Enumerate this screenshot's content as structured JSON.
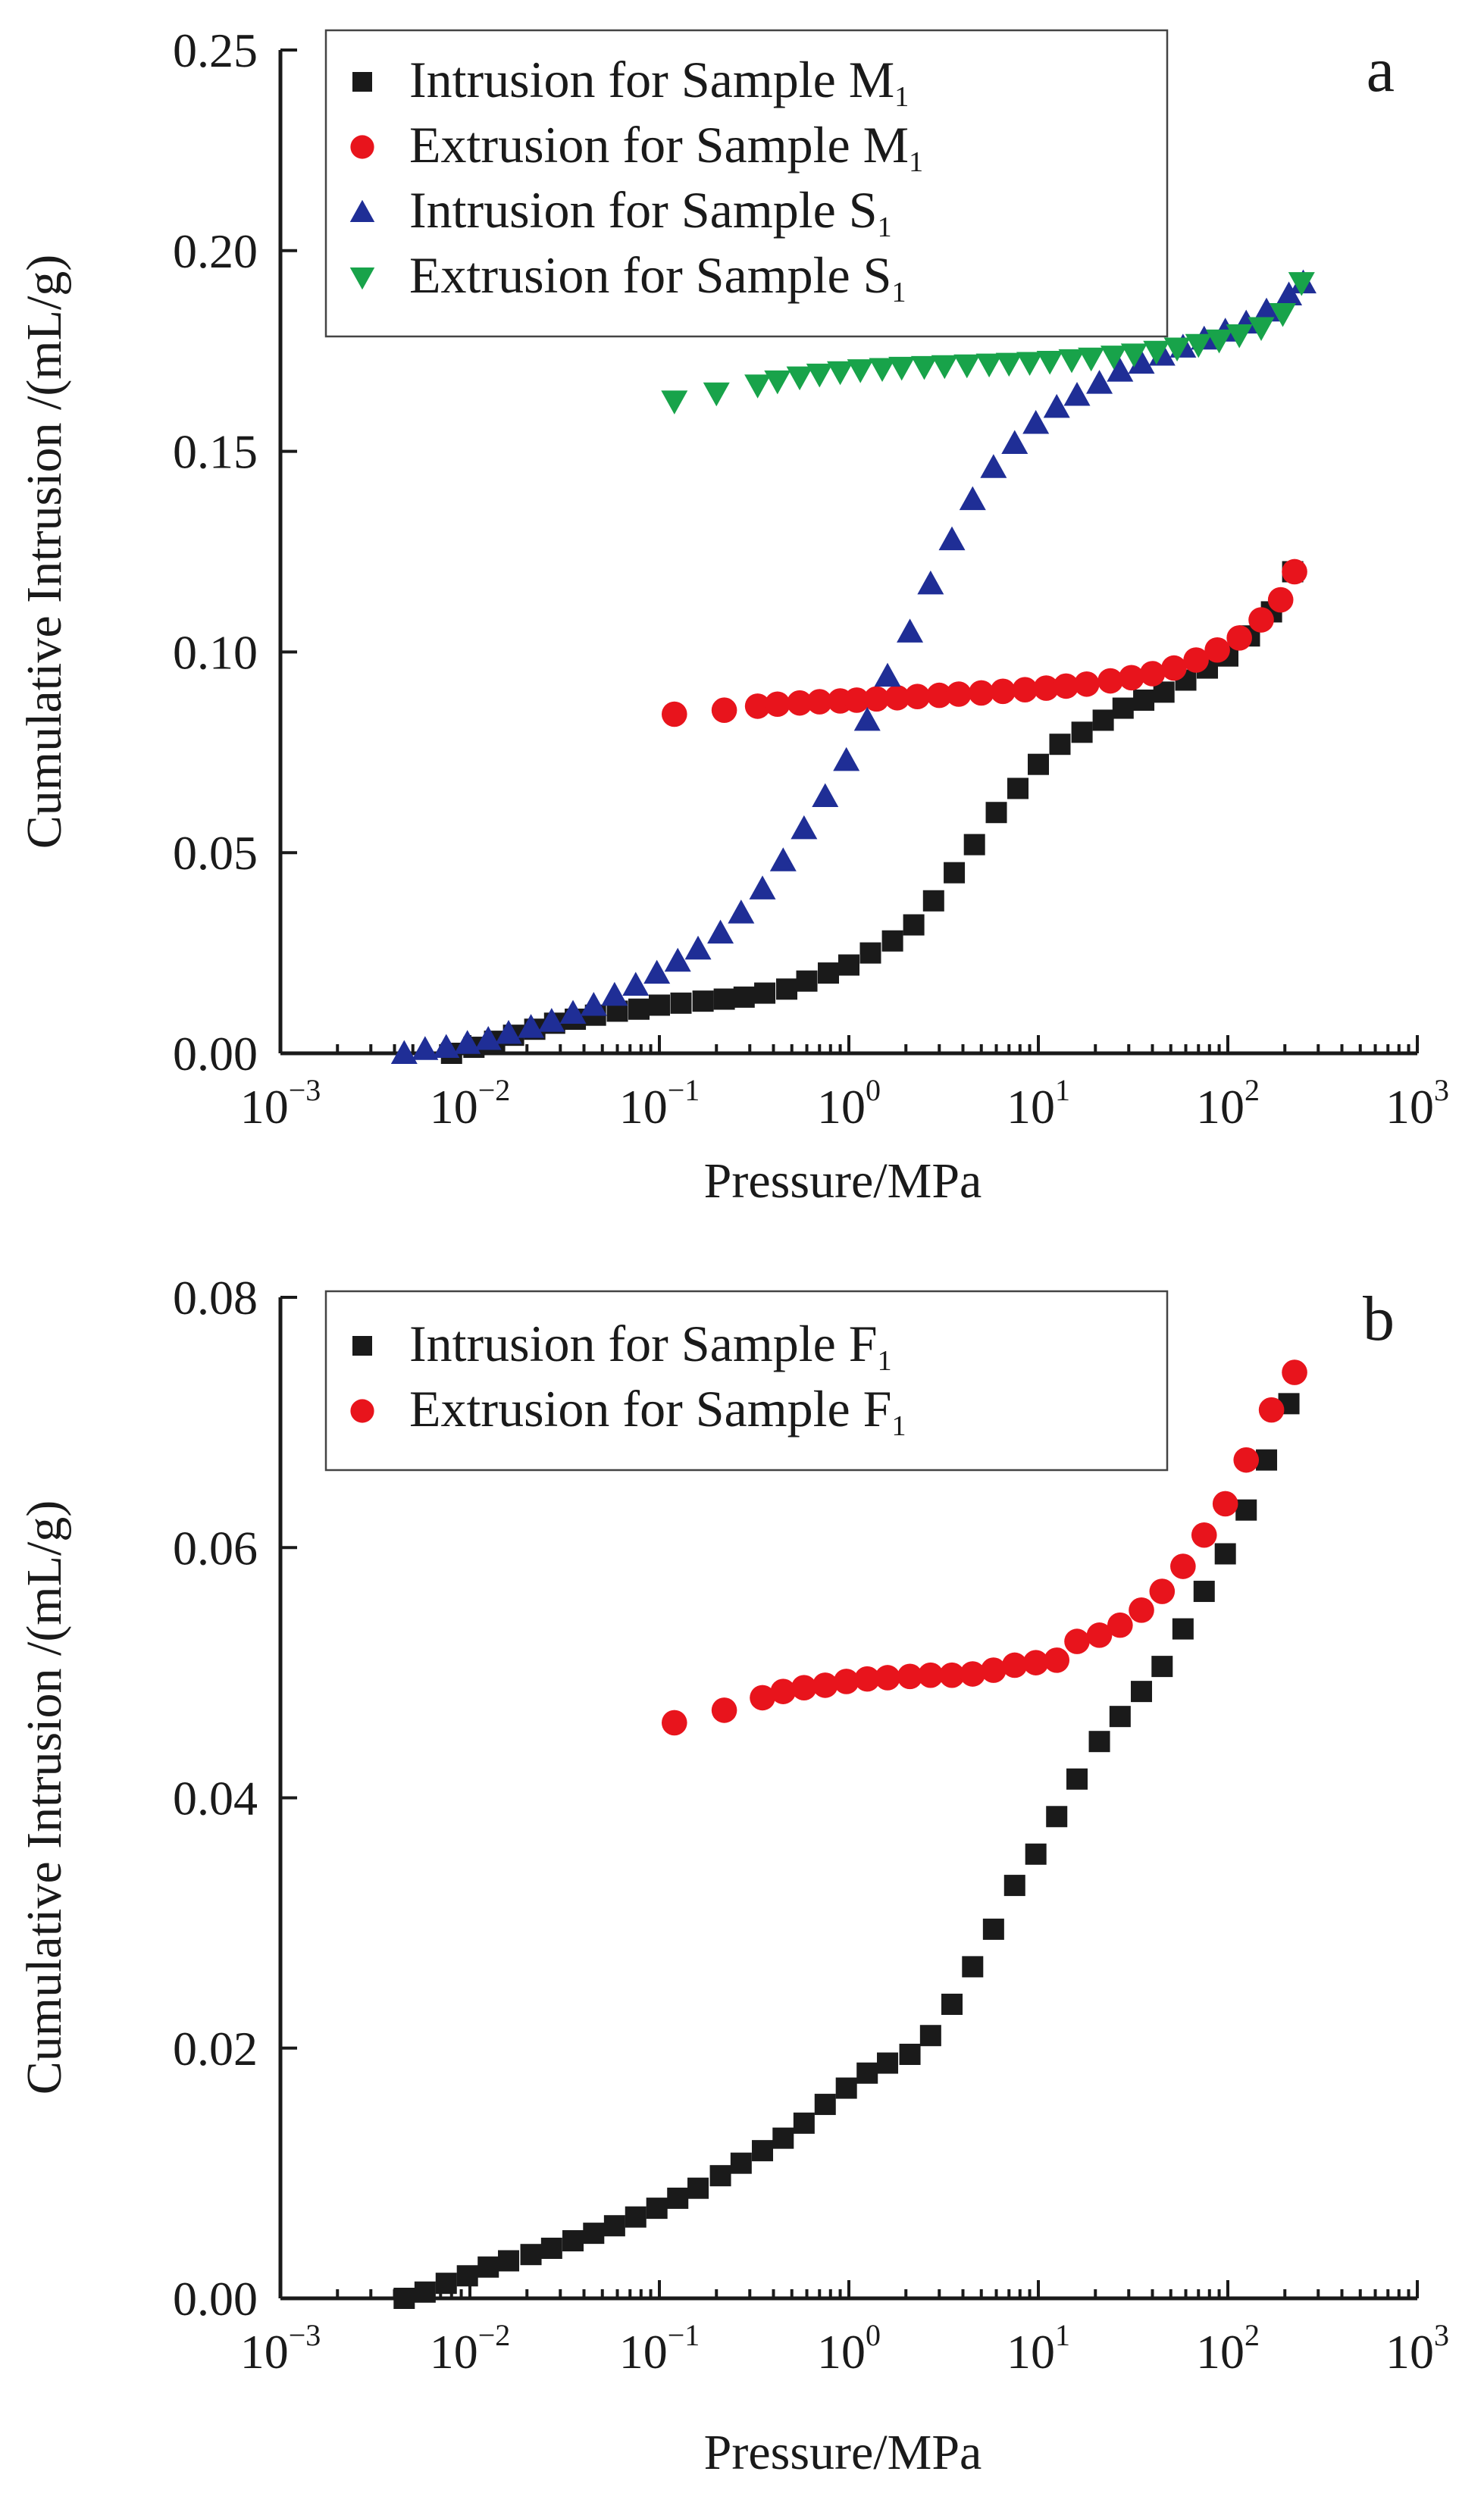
{
  "chart_data": [
    {
      "type": "scatter",
      "panel_label": "a",
      "xscale": "log",
      "xlim": [
        0.001,
        1000
      ],
      "ylim": [
        0,
        0.25
      ],
      "xlabel": "Pressure/MPa",
      "ylabel": "Cumulative Intrusion /(mL/g)",
      "x_ticks": [
        0.001,
        0.01,
        0.1,
        1,
        10,
        100,
        1000
      ],
      "x_tick_base": [
        "10",
        "10",
        "10",
        "10",
        "10",
        "10",
        "10"
      ],
      "x_tick_exp": [
        "−3",
        "−2",
        "−1",
        "0",
        "1",
        "2",
        "3"
      ],
      "y_ticks": [
        0,
        0.05,
        0.1,
        0.15,
        0.2,
        0.25
      ],
      "y_tick_labels": [
        "0.00",
        "0.05",
        "0.10",
        "0.15",
        "0.20",
        "0.25"
      ],
      "legend_position": "top-left",
      "series": [
        {
          "name": "Intrusion for Sample M",
          "subscript": "1",
          "marker": "square",
          "color": "#1a1a1a",
          "x": [
            0.008,
            0.0105,
            0.0135,
            0.017,
            0.022,
            0.028,
            0.036,
            0.046,
            0.06,
            0.078,
            0.1,
            0.13,
            0.17,
            0.22,
            0.28,
            0.36,
            0.47,
            0.6,
            0.78,
            1.0,
            1.3,
            1.7,
            2.2,
            2.8,
            3.6,
            4.6,
            6.0,
            7.8,
            10.0,
            13,
            17,
            22,
            28,
            36,
            46,
            60,
            78,
            100,
            130,
            170,
            220
          ],
          "y": [
            0.0,
            0.0015,
            0.003,
            0.0045,
            0.006,
            0.0075,
            0.0085,
            0.0095,
            0.0105,
            0.011,
            0.012,
            0.0125,
            0.013,
            0.0135,
            0.014,
            0.015,
            0.016,
            0.018,
            0.02,
            0.022,
            0.025,
            0.028,
            0.032,
            0.038,
            0.045,
            0.052,
            0.06,
            0.066,
            0.072,
            0.077,
            0.08,
            0.083,
            0.086,
            0.088,
            0.09,
            0.093,
            0.096,
            0.099,
            0.104,
            0.11,
            0.12
          ]
        },
        {
          "name": "Extrusion for Sample M",
          "subscript": "1",
          "marker": "circle",
          "color": "#e8141c",
          "x": [
            0.12,
            0.22,
            0.33,
            0.42,
            0.55,
            0.7,
            0.9,
            1.1,
            1.4,
            1.8,
            2.3,
            3.0,
            3.8,
            5.0,
            6.5,
            8.5,
            11,
            14,
            18,
            24,
            31,
            40,
            52,
            68,
            88,
            115,
            150,
            190,
            225
          ],
          "y": [
            0.0845,
            0.0855,
            0.0865,
            0.087,
            0.0873,
            0.0876,
            0.0878,
            0.088,
            0.0883,
            0.0886,
            0.0889,
            0.0892,
            0.0895,
            0.0898,
            0.0902,
            0.0906,
            0.091,
            0.0915,
            0.092,
            0.0928,
            0.0936,
            0.0946,
            0.096,
            0.098,
            0.1005,
            0.1035,
            0.108,
            0.113,
            0.12
          ]
        },
        {
          "name": "Intrusion for Sample S",
          "subscript": "1",
          "marker": "triangle-up",
          "color": "#1f2e96",
          "x": [
            0.0045,
            0.0058,
            0.0075,
            0.0097,
            0.0125,
            0.016,
            0.021,
            0.027,
            0.035,
            0.045,
            0.058,
            0.075,
            0.097,
            0.125,
            0.16,
            0.21,
            0.27,
            0.35,
            0.45,
            0.58,
            0.75,
            0.97,
            1.25,
            1.6,
            2.1,
            2.7,
            3.5,
            4.5,
            5.8,
            7.5,
            9.7,
            12.5,
            16,
            21,
            27,
            35,
            45,
            58,
            75,
            97,
            125,
            160,
            210,
            250
          ],
          "y": [
            0.0,
            0.001,
            0.0015,
            0.0025,
            0.0035,
            0.005,
            0.0065,
            0.008,
            0.01,
            0.012,
            0.0145,
            0.017,
            0.02,
            0.023,
            0.026,
            0.03,
            0.035,
            0.041,
            0.048,
            0.056,
            0.064,
            0.073,
            0.083,
            0.094,
            0.105,
            0.117,
            0.128,
            0.138,
            0.146,
            0.152,
            0.157,
            0.161,
            0.164,
            0.167,
            0.17,
            0.172,
            0.174,
            0.176,
            0.178,
            0.18,
            0.182,
            0.185,
            0.189,
            0.192
          ]
        },
        {
          "name": "Extrusion for Sample S",
          "subscript": "1",
          "marker": "triangle-down",
          "color": "#18a34a",
          "x": [
            0.12,
            0.2,
            0.33,
            0.42,
            0.55,
            0.7,
            0.9,
            1.15,
            1.5,
            1.9,
            2.5,
            3.2,
            4.2,
            5.5,
            7.0,
            9.0,
            11.5,
            15,
            19,
            25,
            32,
            42,
            54,
            70,
            90,
            115,
            150,
            195,
            245
          ],
          "y": [
            0.1625,
            0.1645,
            0.1665,
            0.1675,
            0.1685,
            0.1692,
            0.1698,
            0.1703,
            0.1706,
            0.1709,
            0.1711,
            0.1713,
            0.1715,
            0.1717,
            0.1719,
            0.1721,
            0.1724,
            0.1728,
            0.1732,
            0.1737,
            0.1742,
            0.1749,
            0.1757,
            0.1766,
            0.1777,
            0.179,
            0.1808,
            0.1843,
            0.192
          ]
        }
      ]
    },
    {
      "type": "scatter",
      "panel_label": "b",
      "xscale": "log",
      "xlim": [
        0.001,
        1000
      ],
      "ylim": [
        0,
        0.08
      ],
      "xlabel": "Pressure/MPa",
      "ylabel": "Cumulative Intrusion /(mL/g)",
      "x_ticks": [
        0.001,
        0.01,
        0.1,
        1,
        10,
        100,
        1000
      ],
      "x_tick_base": [
        "10",
        "10",
        "10",
        "10",
        "10",
        "10",
        "10"
      ],
      "x_tick_exp": [
        "−3",
        "−2",
        "−1",
        "0",
        "1",
        "2",
        "3"
      ],
      "y_ticks": [
        0,
        0.02,
        0.04,
        0.06,
        0.08
      ],
      "y_tick_labels": [
        "0.00",
        "0.02",
        "0.04",
        "0.06",
        "0.08"
      ],
      "legend_position": "top-left",
      "series": [
        {
          "name": "Intrusion for Sample F",
          "subscript": "1",
          "marker": "square",
          "color": "#1a1a1a",
          "x": [
            0.0045,
            0.0058,
            0.0075,
            0.0097,
            0.0125,
            0.016,
            0.021,
            0.027,
            0.035,
            0.045,
            0.058,
            0.075,
            0.097,
            0.125,
            0.16,
            0.21,
            0.27,
            0.35,
            0.45,
            0.58,
            0.75,
            0.97,
            1.25,
            1.6,
            2.1,
            2.7,
            3.5,
            4.5,
            5.8,
            7.5,
            9.7,
            12.5,
            16,
            21,
            27,
            35,
            45,
            58,
            75,
            97,
            125,
            160,
            210
          ],
          "y": [
            0.0,
            0.0005,
            0.0012,
            0.0018,
            0.0025,
            0.003,
            0.0035,
            0.004,
            0.0046,
            0.0052,
            0.0058,
            0.0065,
            0.0072,
            0.008,
            0.0088,
            0.0098,
            0.0108,
            0.0118,
            0.0128,
            0.014,
            0.0155,
            0.0168,
            0.018,
            0.0188,
            0.0195,
            0.021,
            0.0235,
            0.0265,
            0.0295,
            0.033,
            0.0355,
            0.0385,
            0.0415,
            0.0445,
            0.0465,
            0.0485,
            0.0505,
            0.0535,
            0.0565,
            0.0595,
            0.063,
            0.067,
            0.0715
          ]
        },
        {
          "name": "Extrusion for Sample F",
          "subscript": "1",
          "marker": "circle",
          "color": "#e8141c",
          "x": [
            0.12,
            0.22,
            0.35,
            0.45,
            0.58,
            0.75,
            0.97,
            1.25,
            1.6,
            2.1,
            2.7,
            3.5,
            4.5,
            5.8,
            7.5,
            9.7,
            12.5,
            16,
            21,
            27,
            35,
            45,
            58,
            75,
            97,
            125,
            170,
            225
          ],
          "y": [
            0.046,
            0.047,
            0.048,
            0.0485,
            0.0488,
            0.049,
            0.0493,
            0.0495,
            0.0496,
            0.0497,
            0.0498,
            0.0498,
            0.0499,
            0.0502,
            0.0506,
            0.0508,
            0.051,
            0.0525,
            0.053,
            0.0538,
            0.055,
            0.0565,
            0.0585,
            0.061,
            0.0635,
            0.067,
            0.071,
            0.074
          ]
        }
      ]
    }
  ]
}
